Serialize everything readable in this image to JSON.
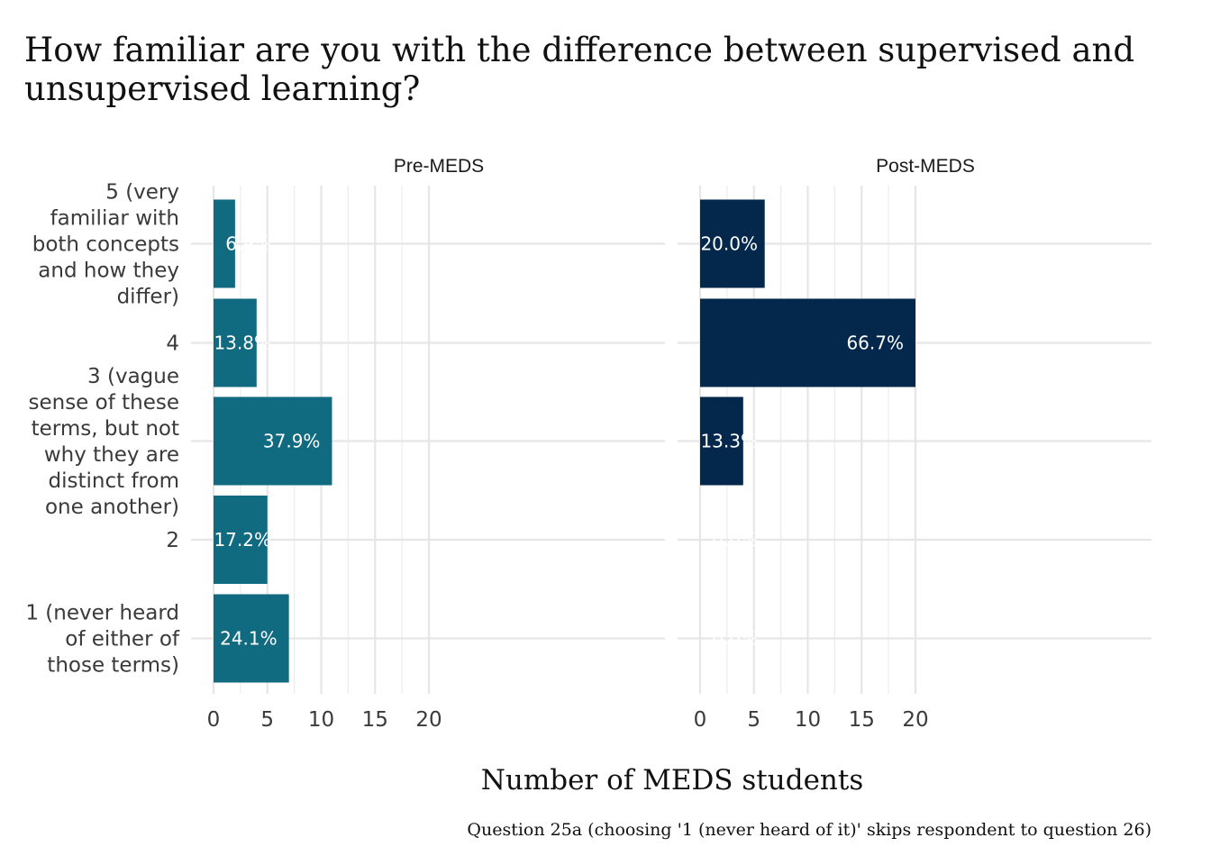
{
  "chart_data": {
    "type": "bar",
    "orientation": "horizontal",
    "title": "How familiar are you with the difference between supervised and unsupervised learning?",
    "title_lines": [
      "How familiar are you with the difference between supervised and",
      "unsupervised learning?"
    ],
    "xlabel": "Number of MEDS students",
    "caption": "Question 25a (choosing '1 (never heard of it)' skips respondent to question 26)",
    "categories": [
      "5 (very familiar with both concepts and how they differ)",
      "4",
      "3 (vague sense of these terms, but not why they are distinct from one another)",
      "2",
      "1 (never heard of either of those terms)"
    ],
    "category_lines": [
      [
        "5 (very",
        "familiar with",
        "both concepts",
        "and how they",
        "differ)"
      ],
      [
        "4"
      ],
      [
        "3 (vague",
        "sense of these",
        "terms, but not",
        "why they are",
        "distinct from",
        "one another)"
      ],
      [
        "2"
      ],
      [
        "1 (never heard",
        "of either of",
        "those terms)"
      ]
    ],
    "xlim": [
      0,
      20
    ],
    "xticks": [
      0,
      5,
      10,
      15,
      20
    ],
    "grid": true,
    "legend": "none",
    "panels": [
      {
        "name": "Pre-MEDS",
        "color": "#106a80",
        "values": [
          2,
          4,
          11,
          5,
          7
        ],
        "labels": [
          "6.9%",
          "13.8%",
          "37.9%",
          "17.2%",
          "24.1%"
        ]
      },
      {
        "name": "Post-MEDS",
        "color": "#03284c",
        "values": [
          6,
          20,
          4,
          0,
          0
        ],
        "labels": [
          "20.0%",
          "66.7%",
          "13.3%",
          "0.0%",
          "0.0%"
        ]
      }
    ]
  }
}
